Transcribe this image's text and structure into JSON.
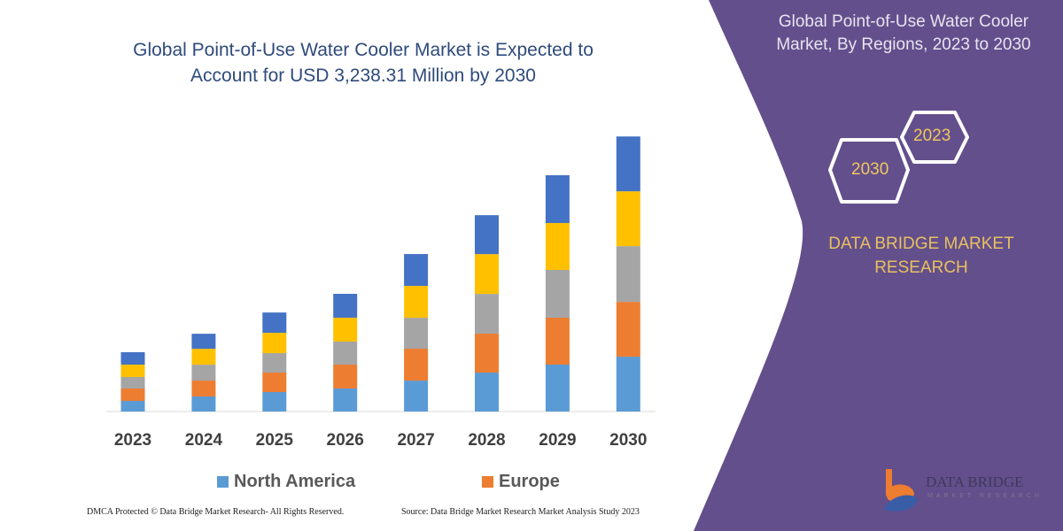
{
  "header": {
    "title_line1": "Global Point-of-Use Water Cooler Market is Expected to",
    "title_line2": "Account for USD 3,238.31 Million by 2030"
  },
  "side_panel": {
    "title_line1": "Global Point-of-Use Water Cooler",
    "title_line2": "Market, By Regions, 2023 to 2030",
    "hex_years": [
      "2023",
      "2030"
    ],
    "brand_line1": "DATA BRIDGE MARKET",
    "brand_line2": "RESEARCH",
    "logo_text": "DATA BRIDGE",
    "logo_subtext": "MARKET RESEARCH",
    "background_color": "#634f8c"
  },
  "footer": {
    "copyright": "DMCA Protected © Data Bridge Market Research-  All Rights Reserved.",
    "source": "Source: Data Bridge Market Research  Market Analysis Study 2023"
  },
  "chart_data": {
    "type": "bar",
    "stacked": true,
    "title": "Global Point-of-Use Water Cooler Market is Expected to Account for USD 3,238.31 Million by 2030",
    "categories": [
      "2023",
      "2024",
      "2025",
      "2026",
      "2027",
      "2028",
      "2029",
      "2030"
    ],
    "ylim": [
      0,
      3238.31
    ],
    "y_axis_shown": false,
    "grid": false,
    "legend_position": "bottom",
    "series": [
      {
        "name": "North America",
        "color": "#5b9bd5",
        "values": [
          125,
          177,
          229,
          271,
          364,
          458,
          552,
          645
        ]
      },
      {
        "name": "Europe",
        "color": "#ed7d31",
        "values": [
          146,
          187,
          229,
          281,
          375,
          458,
          552,
          645
        ]
      },
      {
        "color": "#a5a5a5",
        "values": [
          135,
          187,
          229,
          271,
          364,
          468,
          562,
          656
        ]
      },
      {
        "color": "#ffc000",
        "values": [
          146,
          187,
          239,
          281,
          375,
          468,
          552,
          645
        ]
      },
      {
        "color": "#4472c4",
        "values": [
          146,
          177,
          239,
          281,
          375,
          458,
          562,
          645
        ]
      }
    ]
  }
}
